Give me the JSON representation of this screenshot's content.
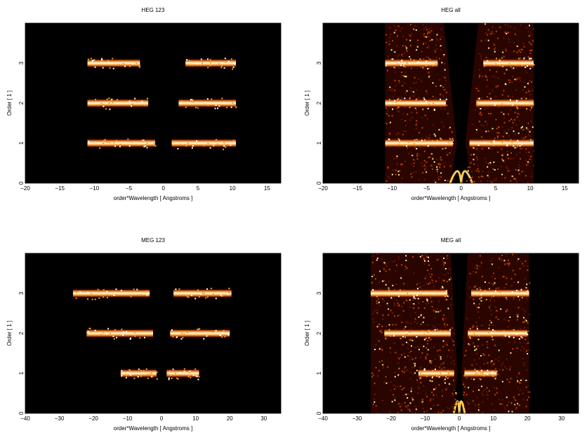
{
  "chart_data": [
    {
      "type": "heatmap",
      "title": "HEG 123",
      "xlabel": "order*Wavelength [ Angstroms ]",
      "ylabel": "Order [ 1 ]",
      "xlim": [
        -20,
        17
      ],
      "ylim": [
        0,
        4
      ],
      "xticks": [
        -20,
        -15,
        -10,
        -5,
        0,
        5,
        10,
        15
      ],
      "yticks": [
        0,
        1,
        2,
        3
      ],
      "colormap": "hot",
      "background": "#000000",
      "bands": [
        {
          "order": 1,
          "segments": [
            [
              -11,
              -1.2
            ],
            [
              1.2,
              10.5
            ]
          ]
        },
        {
          "order": 2,
          "segments": [
            [
              -11,
              -2.2
            ],
            [
              2.2,
              10.5
            ]
          ]
        },
        {
          "order": 3,
          "segments": [
            [
              -11,
              -3.4
            ],
            [
              3.2,
              10.5
            ]
          ]
        }
      ]
    },
    {
      "type": "heatmap",
      "title": "HEG all",
      "xlabel": "order*Wavelength [ Angstroms ]",
      "ylabel": "Order [ 1 ]",
      "xlim": [
        -20,
        17
      ],
      "ylim": [
        0,
        4
      ],
      "xticks": [
        -20,
        -15,
        -10,
        -5,
        0,
        5,
        10,
        15
      ],
      "yticks": [
        0,
        1,
        2,
        3
      ],
      "colormap": "hot",
      "background": "#000000",
      "bands": [
        {
          "order": 1,
          "segments": [
            [
              -11,
              -1.2
            ],
            [
              1.2,
              10.5
            ]
          ]
        },
        {
          "order": 2,
          "segments": [
            [
              -11,
              -2.2
            ],
            [
              2.2,
              10.5
            ]
          ]
        },
        {
          "order": 3,
          "segments": [
            [
              -11,
              -3.4
            ],
            [
              3.2,
              10.5
            ]
          ]
        }
      ]
    },
    {
      "type": "heatmap",
      "title": "MEG 123",
      "xlabel": "order*Wavelength [ Angstroms ]",
      "ylabel": "Order [ 1 ]",
      "xlim": [
        -40,
        35
      ],
      "ylim": [
        0,
        4
      ],
      "xticks": [
        -40,
        -30,
        -20,
        -10,
        0,
        10,
        20,
        30
      ],
      "yticks": [
        0,
        1,
        2,
        3
      ],
      "colormap": "hot",
      "background": "#000000",
      "bands": [
        {
          "order": 1,
          "segments": [
            [
              -12,
              -1.5
            ],
            [
              1.5,
              11
            ]
          ]
        },
        {
          "order": 2,
          "segments": [
            [
              -22,
              -2.5
            ],
            [
              2.5,
              20
            ]
          ]
        },
        {
          "order": 3,
          "segments": [
            [
              -26,
              -3.5
            ],
            [
              3.5,
              20.5
            ]
          ]
        }
      ]
    },
    {
      "type": "heatmap",
      "title": "MEG all",
      "xlabel": "order*Wavelength [ Angstroms ]",
      "ylabel": "Order [ 1 ]",
      "xlim": [
        -40,
        35
      ],
      "ylim": [
        0,
        4
      ],
      "xticks": [
        -40,
        -30,
        -20,
        -10,
        0,
        10,
        20,
        30
      ],
      "yticks": [
        0,
        1,
        2,
        3
      ],
      "colormap": "hot",
      "background": "#000000",
      "bands": [
        {
          "order": 1,
          "segments": [
            [
              -12,
              -1.5
            ],
            [
              1.5,
              11
            ]
          ]
        },
        {
          "order": 2,
          "segments": [
            [
              -22,
              -2.5
            ],
            [
              2.5,
              20
            ]
          ]
        },
        {
          "order": 3,
          "segments": [
            [
              -26,
              -3.5
            ],
            [
              3.5,
              20.5
            ]
          ]
        }
      ]
    }
  ]
}
